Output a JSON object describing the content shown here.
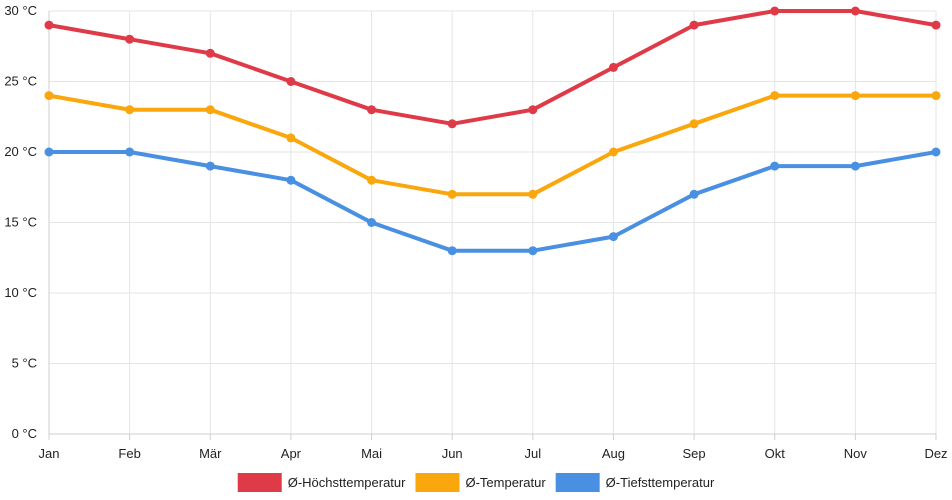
{
  "chart_data": {
    "type": "line",
    "title": "",
    "xlabel": "",
    "ylabel": "",
    "categories": [
      "Jan",
      "Feb",
      "Mär",
      "Apr",
      "Mai",
      "Jun",
      "Jul",
      "Aug",
      "Sep",
      "Okt",
      "Nov",
      "Dez"
    ],
    "ylim": [
      0,
      30
    ],
    "yticks": [
      0,
      5,
      10,
      15,
      20,
      25,
      30
    ],
    "ytick_labels": [
      "0 °C",
      "5 °C",
      "10 °C",
      "15 °C",
      "20 °C",
      "25 °C",
      "30 °C"
    ],
    "grid": true,
    "legend_position": "bottom",
    "series": [
      {
        "name": "Ø-Höchsttemperatur",
        "color": "#df3a47",
        "values": [
          29,
          28,
          27,
          25,
          23,
          22,
          23,
          26,
          29,
          30,
          30,
          29
        ]
      },
      {
        "name": "Ø-Temperatur",
        "color": "#f9a70d",
        "values": [
          24,
          23,
          23,
          21,
          18,
          17,
          17,
          20,
          22,
          24,
          24,
          24
        ]
      },
      {
        "name": "Ø-Tiefsttemperatur",
        "color": "#4a90e2",
        "values": [
          20,
          20,
          19,
          18,
          15,
          13,
          13,
          14,
          17,
          19,
          19,
          20
        ]
      }
    ]
  }
}
